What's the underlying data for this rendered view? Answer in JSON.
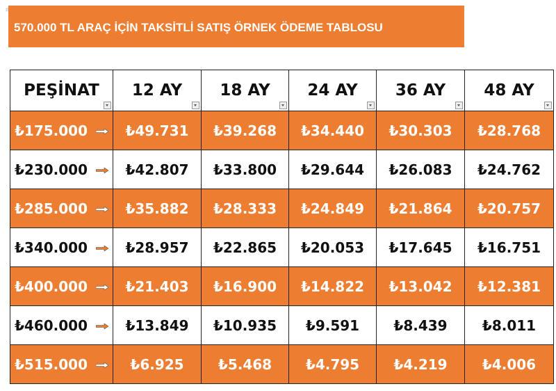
{
  "image_id": "#1249133412",
  "header": {
    "title": "570.000 TL ARAÇ İÇİN TAKSİTLİ SATIŞ ÖRNEK ÖDEME TABLOSU"
  },
  "table": {
    "columns": [
      "PEŞİNAT",
      "12 AY",
      "18 AY",
      "24 AY",
      "36 AY",
      "48 AY"
    ],
    "rows": [
      [
        "₺175.000",
        "₺49.731",
        "₺39.268",
        "₺34.440",
        "₺30.303",
        "₺28.768"
      ],
      [
        "₺230.000",
        "₺42.807",
        "₺33.800",
        "₺29.644",
        "₺26.083",
        "₺24.762"
      ],
      [
        "₺285.000",
        "₺35.882",
        "₺28.333",
        "₺24.849",
        "₺21.864",
        "₺20.757"
      ],
      [
        "₺340.000",
        "₺28.957",
        "₺22.865",
        "₺20.053",
        "₺17.645",
        "₺16.751"
      ],
      [
        "₺400.000",
        "₺21.403",
        "₺16.900",
        "₺14.822",
        "₺13.042",
        "₺12.381"
      ],
      [
        "₺460.000",
        "₺13.849",
        "₺10.935",
        "₺9.591",
        "₺8.439",
        "₺8.011"
      ],
      [
        "₺515.000",
        "₺6.925",
        "₺5.468",
        "₺4.795",
        "₺4.219",
        "₺4.006"
      ]
    ]
  }
}
